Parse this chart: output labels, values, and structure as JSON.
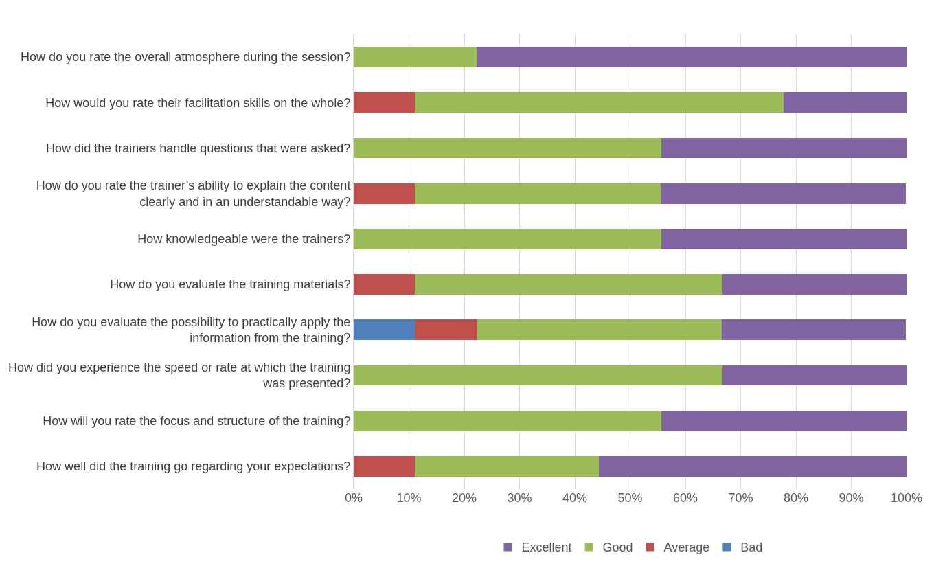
{
  "chart_data": {
    "type": "bar",
    "orientation": "horizontal",
    "stacked": true,
    "categories": [
      "How do you rate the overall atmosphere during the session?",
      "How would you rate their facilitation skills on the whole?",
      "How did the trainers handle questions that were asked?",
      "How do you rate the trainer’s ability to explain the content clearly and in an understandable way?",
      "How knowledgeable were the trainers?",
      "How do you evaluate the training materials?",
      "How do you evaluate the possibility to practically apply the information from the training?",
      "How did you experience the speed or rate at which the training was presented?",
      "How will you rate the focus and structure of the training?",
      "How well did the training go regarding your expectations?"
    ],
    "series": [
      {
        "name": "Bad",
        "color": "#4f81bd",
        "values": [
          0,
          0,
          0,
          0,
          0,
          0,
          11.1,
          0,
          0,
          0
        ]
      },
      {
        "name": "Average",
        "color": "#c0504d",
        "values": [
          0,
          11.1,
          0,
          11.1,
          0,
          11.1,
          11.1,
          0,
          0,
          11.1
        ]
      },
      {
        "name": "Good",
        "color": "#9bbb59",
        "values": [
          22.2,
          66.7,
          55.6,
          44.4,
          55.6,
          55.6,
          44.4,
          66.7,
          55.6,
          33.3
        ]
      },
      {
        "name": "Excellent",
        "color": "#8064a2",
        "values": [
          77.8,
          22.2,
          44.4,
          44.4,
          44.4,
          33.3,
          33.3,
          33.3,
          44.4,
          55.6
        ]
      }
    ],
    "xlim": [
      0,
      100
    ],
    "xticks": [
      {
        "value": 0,
        "label": "0%"
      },
      {
        "value": 10,
        "label": "10%"
      },
      {
        "value": 20,
        "label": "20%"
      },
      {
        "value": 30,
        "label": "30%"
      },
      {
        "value": 40,
        "label": "40%"
      },
      {
        "value": 50,
        "label": "50%"
      },
      {
        "value": 60,
        "label": "60%"
      },
      {
        "value": 70,
        "label": "70%"
      },
      {
        "value": 80,
        "label": "80%"
      },
      {
        "value": 90,
        "label": "90%"
      },
      {
        "value": 100,
        "label": "100%"
      }
    ],
    "grid": "x",
    "legend": "bottom"
  }
}
